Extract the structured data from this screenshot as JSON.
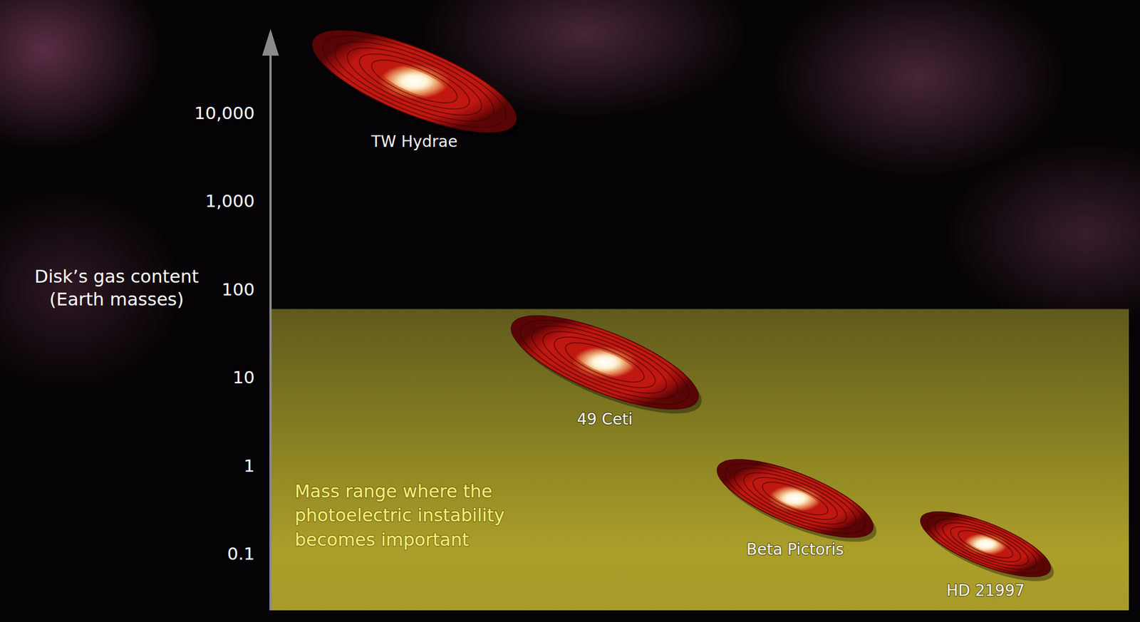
{
  "chart_data": {
    "type": "scatter",
    "y_label": "Disk’s gas content\n(Earth masses)",
    "categories": [
      "TW Hydrae",
      "49 Ceti",
      "Beta Pictoris",
      "HD 21997"
    ],
    "values": [
      23000,
      15,
      0.43,
      0.13
    ],
    "log": "y",
    "ylim": [
      0.023,
      90000
    ],
    "yticks": [
      0.1,
      1,
      10,
      100,
      {
        "value": 1000,
        "label": "1,000"
      },
      {
        "value": 10000,
        "label": "10,000"
      }
    ],
    "tick_labels": "y",
    "grid": false,
    "marker": "disk",
    "color": "#c01810",
    "band": [
      0.023,
      60
    ],
    "band_label": "Mass range where the\nphotoelectric instability\nbecomes important"
  }
}
